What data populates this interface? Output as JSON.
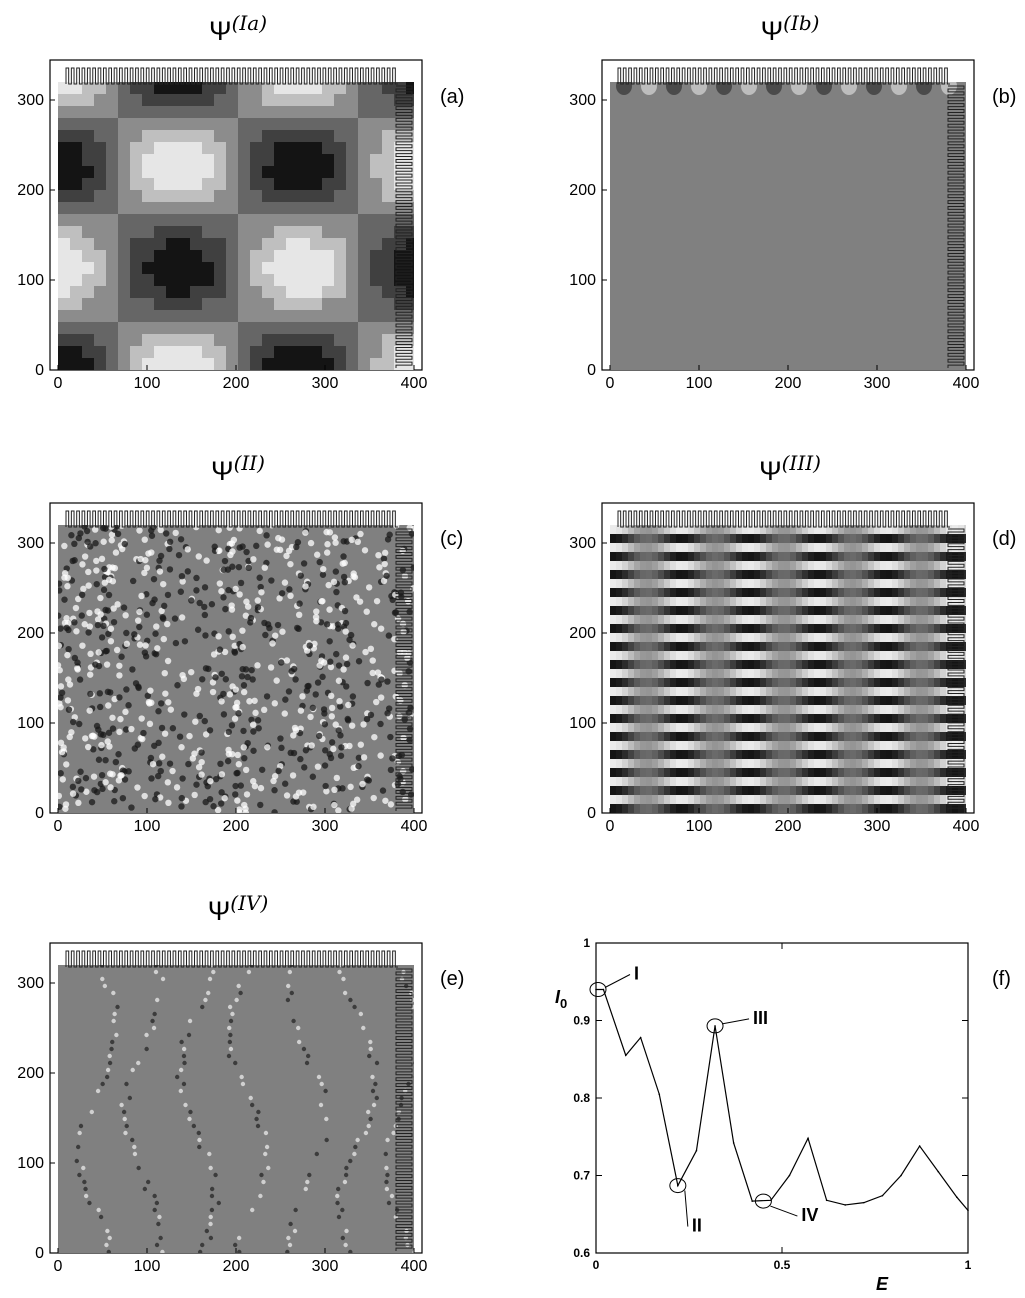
{
  "panels": [
    {
      "id": "a",
      "title_main": "Ψ",
      "title_sup": "(Ia)",
      "tag": "(a)",
      "x_ticks": [
        "0",
        "100",
        "200",
        "300",
        "400"
      ],
      "y_ticks": [
        "0",
        "100",
        "200",
        "300"
      ],
      "pattern": "large-cells"
    },
    {
      "id": "b",
      "title_main": "Ψ",
      "title_sup": "(Ib)",
      "tag": "(b)",
      "x_ticks": [
        "0",
        "100",
        "200",
        "300",
        "400"
      ],
      "y_ticks": [
        "0",
        "100",
        "200",
        "300"
      ],
      "pattern": "uniform"
    },
    {
      "id": "c",
      "title_main": "Ψ",
      "title_sup": "(II)",
      "tag": "(c)",
      "x_ticks": [
        "0",
        "100",
        "200",
        "300",
        "400"
      ],
      "y_ticks": [
        "0",
        "100",
        "200",
        "300"
      ],
      "pattern": "disordered-dots"
    },
    {
      "id": "d",
      "title_main": "Ψ",
      "title_sup": "(III)",
      "tag": "(d)",
      "x_ticks": [
        "0",
        "100",
        "200",
        "300",
        "400"
      ],
      "y_ticks": [
        "0",
        "100",
        "200",
        "300"
      ],
      "pattern": "stripes"
    },
    {
      "id": "e",
      "title_main": "Ψ",
      "title_sup": "(IV)",
      "tag": "(e)",
      "x_ticks": [
        "0",
        "100",
        "200",
        "300",
        "400"
      ],
      "y_ticks": [
        "0",
        "100",
        "200",
        "300"
      ],
      "pattern": "sparse-chains"
    }
  ],
  "graph": {
    "tag": "(f)",
    "ylabel_main": "I",
    "ylabel_sub": "0",
    "xlabel": "E",
    "x_ticks": [
      "0",
      "0.5",
      "1"
    ],
    "y_ticks": [
      "0.6",
      "0.7",
      "0.8",
      "0.9",
      "1"
    ],
    "annotations": [
      {
        "label": "I",
        "x": 0.0,
        "y": 0.94
      },
      {
        "label": "II",
        "x": 0.22,
        "y": 0.687
      },
      {
        "label": "III",
        "x": 0.32,
        "y": 0.893
      },
      {
        "label": "IV",
        "x": 0.45,
        "y": 0.667
      }
    ]
  },
  "chart_data": {
    "type": "line",
    "title": "",
    "xlabel": "E",
    "ylabel": "I0",
    "xlim": [
      0,
      1
    ],
    "ylim": [
      0.6,
      1.0
    ],
    "grid": false,
    "series": [
      {
        "values_x": [
          0.0,
          0.02,
          0.08,
          0.12,
          0.17,
          0.22,
          0.27,
          0.32,
          0.37,
          0.42,
          0.47,
          0.52,
          0.57,
          0.62,
          0.67,
          0.72,
          0.77,
          0.82,
          0.87,
          0.92,
          0.97,
          1.0
        ],
        "values_y": [
          0.94,
          0.94,
          0.855,
          0.878,
          0.805,
          0.687,
          0.732,
          0.893,
          0.742,
          0.667,
          0.668,
          0.7,
          0.748,
          0.668,
          0.662,
          0.665,
          0.674,
          0.7,
          0.738,
          0.705,
          0.672,
          0.655
        ]
      }
    ]
  }
}
